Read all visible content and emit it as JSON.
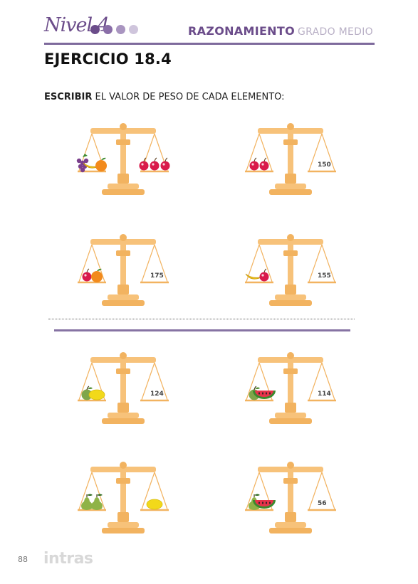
{
  "header": {
    "nivel": "Nivel 4",
    "section": "RAZONAMIENTO",
    "level_text": "GRADO MEDIO",
    "dot_colors": [
      "#6b4c8a",
      "#8a6ea8",
      "#a995c0",
      "#cfc5dc"
    ]
  },
  "title": "EJERCICIO 18.4",
  "instruction": {
    "bold": "ESCRIBIR",
    "rest": " EL VALOR DE PESO DE CADA ELEMENTO:"
  },
  "scales": [
    {
      "left": [
        "grapes-icon",
        "banana-icon",
        "orange-icon"
      ],
      "right": [
        "cherry-icon",
        "cherry-icon",
        "cherry-icon"
      ],
      "weight": ""
    },
    {
      "left": [
        "cherry-icon",
        "cherry-icon"
      ],
      "right": [],
      "weight": "150"
    },
    {
      "left": [
        "cherry-icon",
        "orange-icon"
      ],
      "right": [],
      "weight": "175"
    },
    {
      "left": [
        "banana-icon",
        "cherry-icon"
      ],
      "right": [],
      "weight": "155"
    },
    {
      "left": [
        "apple-icon",
        "lemon-icon"
      ],
      "right": [],
      "weight": "124"
    },
    {
      "left": [
        "apple-icon",
        "watermelon-icon"
      ],
      "right": [],
      "weight": "114"
    },
    {
      "left": [
        "pear-icon",
        "pear-icon"
      ],
      "right": [
        "lemon-icon"
      ],
      "weight": ""
    },
    {
      "left": [
        "pear-icon",
        "watermelon-icon"
      ],
      "right": [],
      "weight": "56"
    }
  ],
  "footer": {
    "page_number": "88",
    "logo": "intras"
  }
}
